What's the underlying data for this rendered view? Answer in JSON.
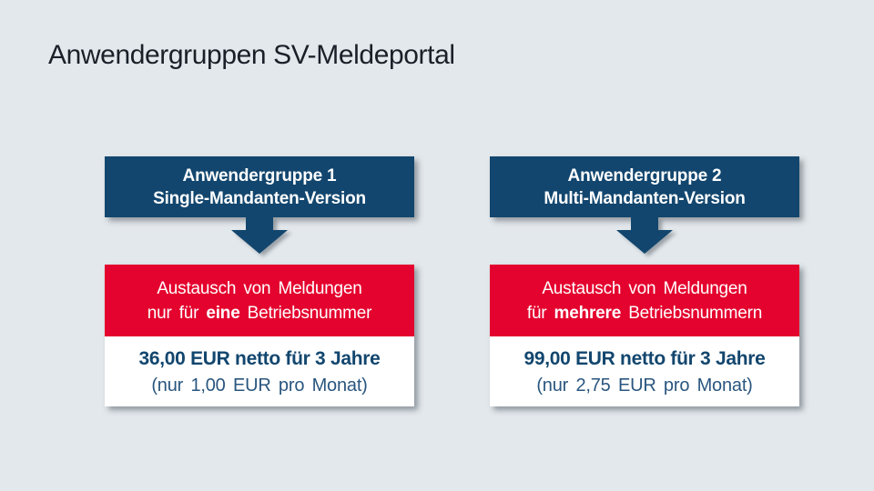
{
  "page": {
    "title": "Anwendergruppen SV-Meldeportal"
  },
  "colors": {
    "background": "#e3e8ec",
    "navy": "#12466e",
    "red": "#e4032e",
    "title_text": "#1a2028",
    "price_sub_text": "#2a567f",
    "box_text": "#ffffff"
  },
  "groups": [
    {
      "header_line1": "Anwendergruppe 1",
      "header_line2": "Single-Mandanten-Version",
      "feature_line1": "Austausch von Meldungen",
      "feature_line2_prefix": "nur für ",
      "feature_line2_bold": "eine",
      "feature_line2_suffix": " Betriebsnummer",
      "price_line1": "36,00 EUR netto für 3 Jahre",
      "price_line2": "(nur 1,00 EUR pro Monat)"
    },
    {
      "header_line1": "Anwendergruppe 2",
      "header_line2": "Multi-Mandanten-Version",
      "feature_line1": "Austausch von Meldungen",
      "feature_line2_prefix": "für ",
      "feature_line2_bold": "mehrere",
      "feature_line2_suffix": " Betriebsnummern",
      "price_line1": "99,00 EUR netto für 3 Jahre",
      "price_line2": "(nur 2,75 EUR pro Monat)"
    }
  ]
}
